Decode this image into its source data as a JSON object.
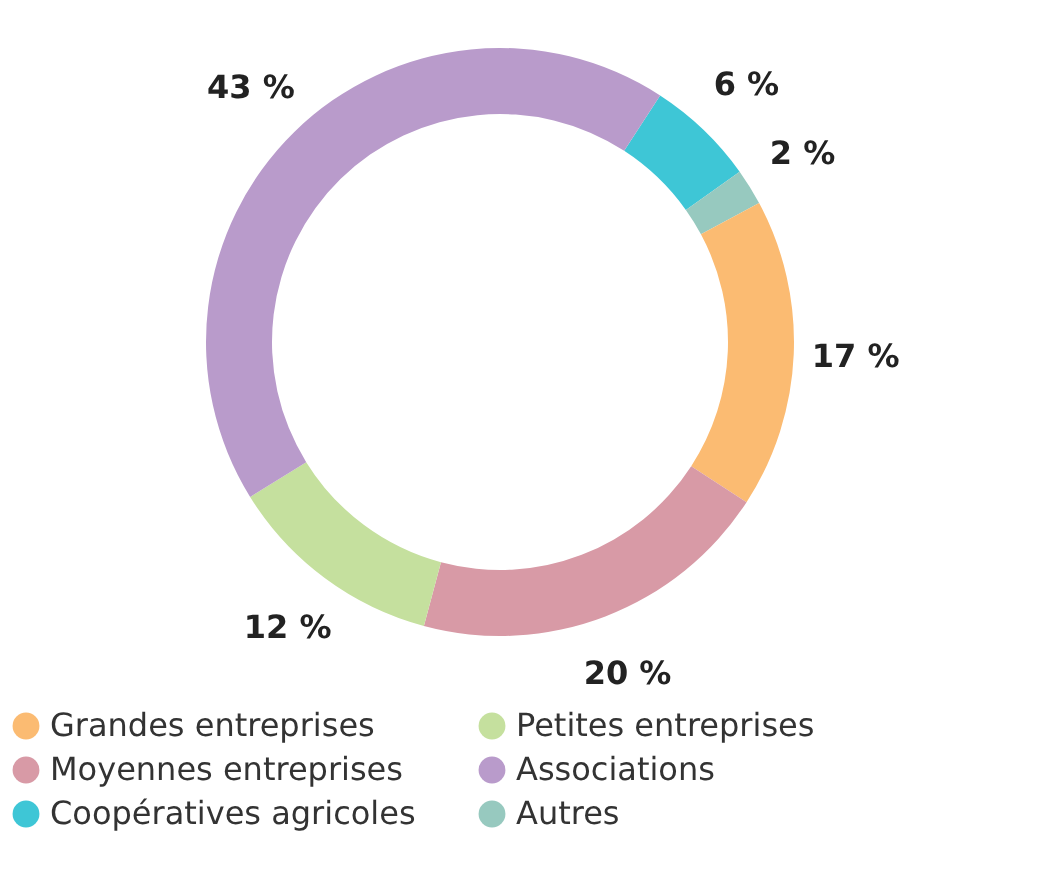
{
  "chart_data": {
    "type": "donut",
    "categories": [
      "Coopératives agricoles",
      "Autres",
      "Grandes entreprises",
      "Moyennes entreprises",
      "Petites entreprises",
      "Associations"
    ],
    "values": [
      6,
      2,
      17,
      20,
      12,
      43
    ],
    "colors": [
      "#3ec6d6",
      "#97c9bf",
      "#fbbb72",
      "#d89aa6",
      "#c5e09e",
      "#b99bcb"
    ],
    "value_labels": [
      "6 %",
      "2 %",
      "17 %",
      "20 %",
      "12 %",
      "43 %"
    ],
    "legend": "bottom"
  }
}
